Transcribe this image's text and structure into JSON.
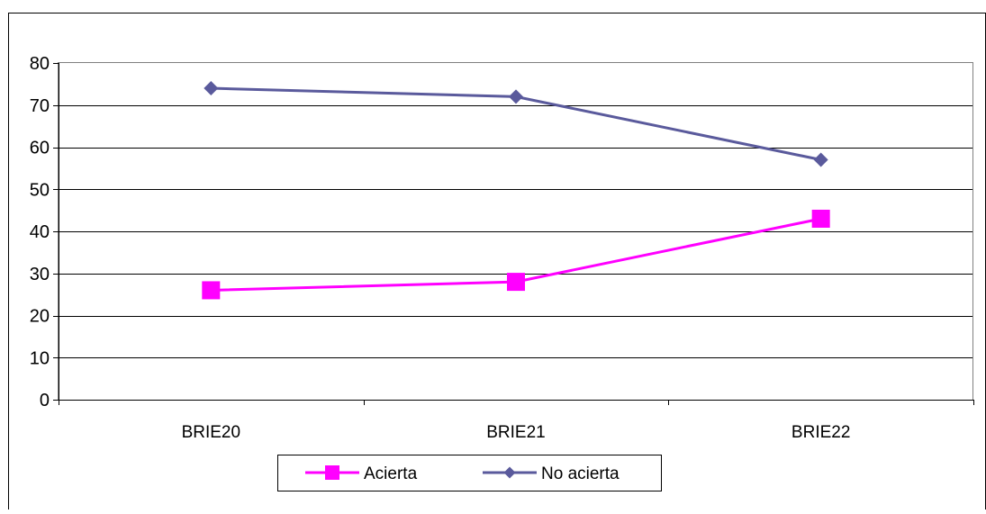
{
  "chart_data": {
    "type": "line",
    "categories": [
      "BRIE20",
      "BRIE21",
      "BRIE22"
    ],
    "series": [
      {
        "name": "Acierta",
        "values": [
          26,
          28,
          43
        ],
        "color": "#ff00ff",
        "marker": "square"
      },
      {
        "name": "No acierta",
        "values": [
          74,
          72,
          57
        ],
        "color": "#5a5a9c",
        "marker": "diamond"
      }
    ],
    "title": "",
    "xlabel": "",
    "ylabel": "",
    "ylim": [
      0,
      80
    ],
    "yticks": [
      "0",
      "10",
      "20",
      "30",
      "40",
      "50",
      "60",
      "70",
      "80"
    ],
    "grid": true,
    "legend_position": "bottom"
  }
}
